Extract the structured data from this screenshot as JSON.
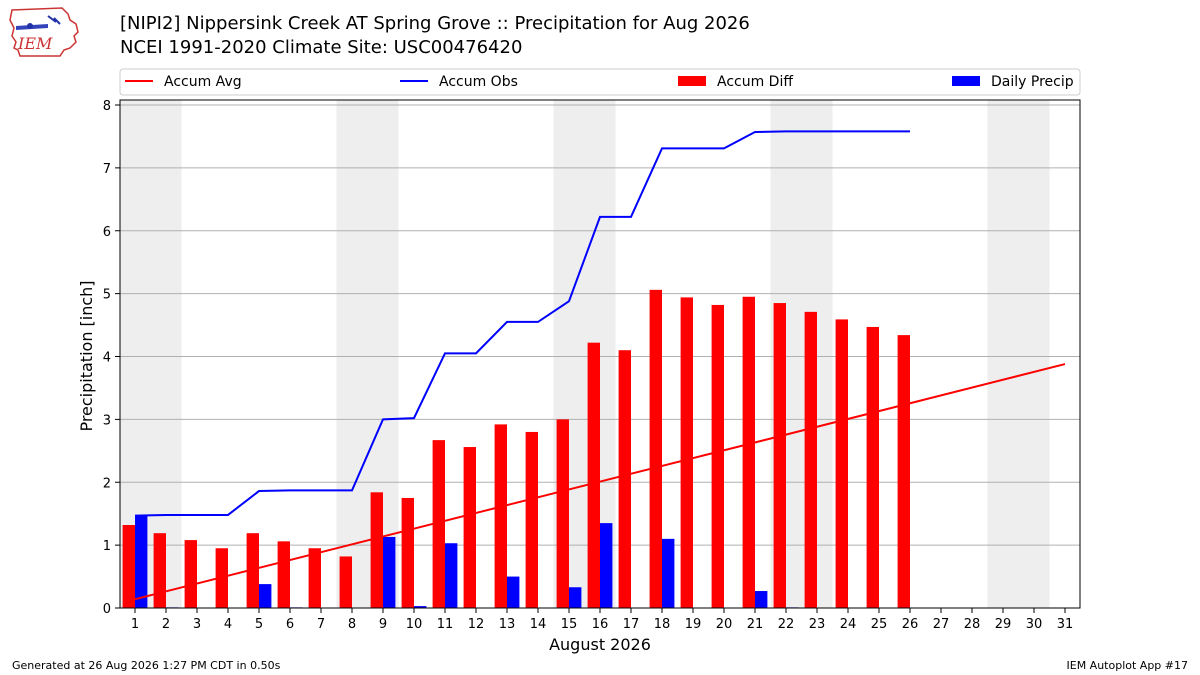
{
  "header": {
    "title_line1": "[NIPI2] Nippersink Creek  AT Spring Grove :: Precipitation for Aug 2026",
    "title_line2": "NCEI 1991-2020 Climate Site: USC00476420",
    "logo_text": "IEM"
  },
  "footer": {
    "generated": "Generated at 26 Aug 2026 1:27 PM CDT in 0.50s",
    "app": "IEM Autoplot App #17"
  },
  "colors": {
    "avg": "#ff0000",
    "obs": "#0000ff",
    "diff": "#ff0000",
    "daily": "#0000ff",
    "weekend": "#eeeeee",
    "grid": "#b0b0b0"
  },
  "chart_data": {
    "type": "bar",
    "xlabel": "August 2026",
    "ylabel": "Precipitation [inch]",
    "xlim": [
      1,
      31
    ],
    "ylim": [
      0,
      8
    ],
    "xticks": [
      1,
      2,
      3,
      4,
      5,
      6,
      7,
      8,
      9,
      10,
      11,
      12,
      13,
      14,
      15,
      16,
      17,
      18,
      19,
      20,
      21,
      22,
      23,
      24,
      25,
      26,
      27,
      28,
      29,
      30,
      31
    ],
    "yticks": [
      0,
      1,
      2,
      3,
      4,
      5,
      6,
      7,
      8
    ],
    "weekend_days": [
      1,
      2,
      8,
      9,
      15,
      16,
      22,
      23,
      29,
      30
    ],
    "grid": true,
    "legend_position": "top",
    "legend": [
      "Accum Avg",
      "Accum Obs",
      "Accum Diff",
      "Daily Precip"
    ],
    "series": [
      {
        "name": "Accum Avg",
        "kind": "line",
        "x": [
          1,
          31
        ],
        "values": [
          0.14,
          3.88
        ]
      },
      {
        "name": "Accum Obs",
        "kind": "line",
        "x": [
          1,
          2,
          3,
          4,
          5,
          6,
          7,
          8,
          9,
          10,
          11,
          12,
          13,
          14,
          15,
          16,
          17,
          18,
          19,
          20,
          21,
          22,
          23,
          24,
          25,
          26
        ],
        "values": [
          1.47,
          1.48,
          1.48,
          1.48,
          1.86,
          1.87,
          1.87,
          1.87,
          3.0,
          3.02,
          4.05,
          4.05,
          4.55,
          4.55,
          4.88,
          6.22,
          6.22,
          7.31,
          7.31,
          7.31,
          7.57,
          7.58,
          7.58,
          7.58,
          7.58,
          7.58
        ]
      },
      {
        "name": "Accum Diff",
        "kind": "bar",
        "x": [
          1,
          2,
          3,
          4,
          5,
          6,
          7,
          8,
          9,
          10,
          11,
          12,
          13,
          14,
          15,
          16,
          17,
          18,
          19,
          20,
          21,
          22,
          23,
          24,
          25,
          26
        ],
        "values": [
          1.32,
          1.19,
          1.08,
          0.95,
          1.19,
          1.06,
          0.95,
          0.82,
          1.84,
          1.75,
          2.67,
          2.56,
          2.92,
          2.8,
          3.0,
          4.22,
          4.1,
          5.06,
          4.94,
          4.82,
          4.95,
          4.85,
          4.71,
          4.59,
          4.47,
          4.34
        ]
      },
      {
        "name": "Daily Precip",
        "kind": "bar",
        "x": [
          1,
          2,
          3,
          4,
          5,
          6,
          7,
          8,
          9,
          10,
          11,
          12,
          13,
          14,
          15,
          16,
          17,
          18,
          19,
          20,
          21,
          22,
          23,
          24,
          25,
          26
        ],
        "values": [
          1.47,
          0.01,
          0,
          0,
          0.38,
          0.01,
          0,
          0,
          1.13,
          0.03,
          1.03,
          0,
          0.5,
          0,
          0.33,
          1.35,
          0,
          1.1,
          0,
          0,
          0.27,
          0.01,
          0,
          0,
          0,
          0
        ]
      }
    ]
  }
}
